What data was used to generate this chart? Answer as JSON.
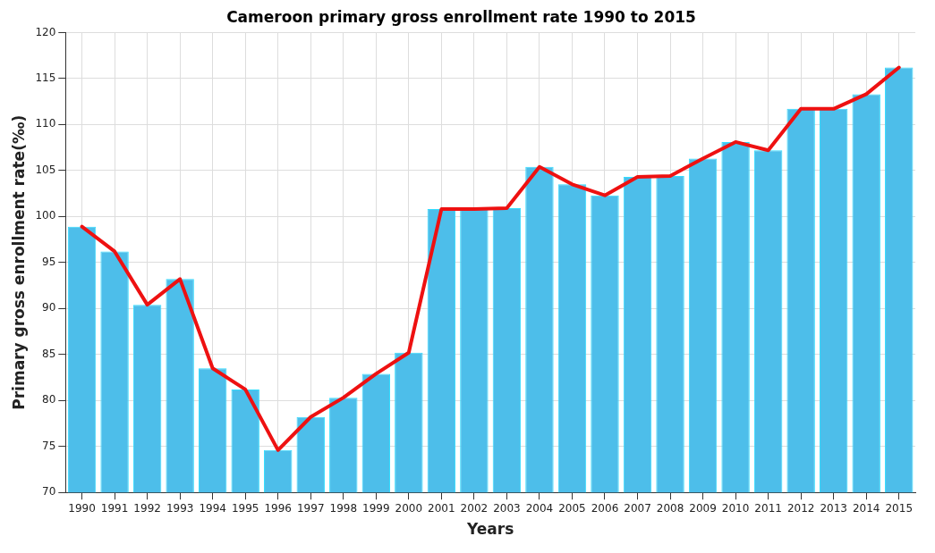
{
  "chart_data": {
    "type": "bar",
    "title": "Cameroon primary gross enrollment rate 1990 to 2015",
    "xlabel": "Years",
    "ylabel": "Primary gross enrollment rate(‰)",
    "categories": [
      "1990",
      "1991",
      "1992",
      "1993",
      "1994",
      "1995",
      "1996",
      "1997",
      "1998",
      "1999",
      "2000",
      "2001",
      "2002",
      "2003",
      "2004",
      "2005",
      "2006",
      "2007",
      "2008",
      "2009",
      "2010",
      "2011",
      "2012",
      "2013",
      "2014",
      "2015"
    ],
    "series": [
      {
        "color": "#4dbeea",
        "values": [
          98.9,
          96.2,
          90.4,
          93.2,
          83.5,
          81.2,
          74.6,
          78.2,
          80.3,
          82.9,
          85.2,
          100.8,
          100.8,
          100.9,
          105.4,
          103.5,
          102.3,
          104.3,
          104.4,
          106.3,
          108.1,
          107.2,
          111.7,
          111.7,
          113.3,
          116.2
        ]
      },
      {
        "type": "line",
        "color": "#ee1111",
        "values": [
          98.9,
          96.2,
          90.4,
          93.2,
          83.5,
          81.2,
          74.6,
          78.2,
          80.3,
          82.9,
          85.2,
          100.8,
          100.8,
          100.9,
          105.4,
          103.5,
          102.3,
          104.3,
          104.4,
          106.3,
          108.1,
          107.2,
          111.7,
          111.7,
          113.3,
          116.2
        ]
      }
    ],
    "ylim": [
      70,
      120
    ],
    "yticks": [
      70,
      75,
      80,
      85,
      90,
      95,
      100,
      105,
      110,
      115,
      120
    ],
    "grid": true,
    "legend": false,
    "marker": "none",
    "line_style": "solid"
  }
}
